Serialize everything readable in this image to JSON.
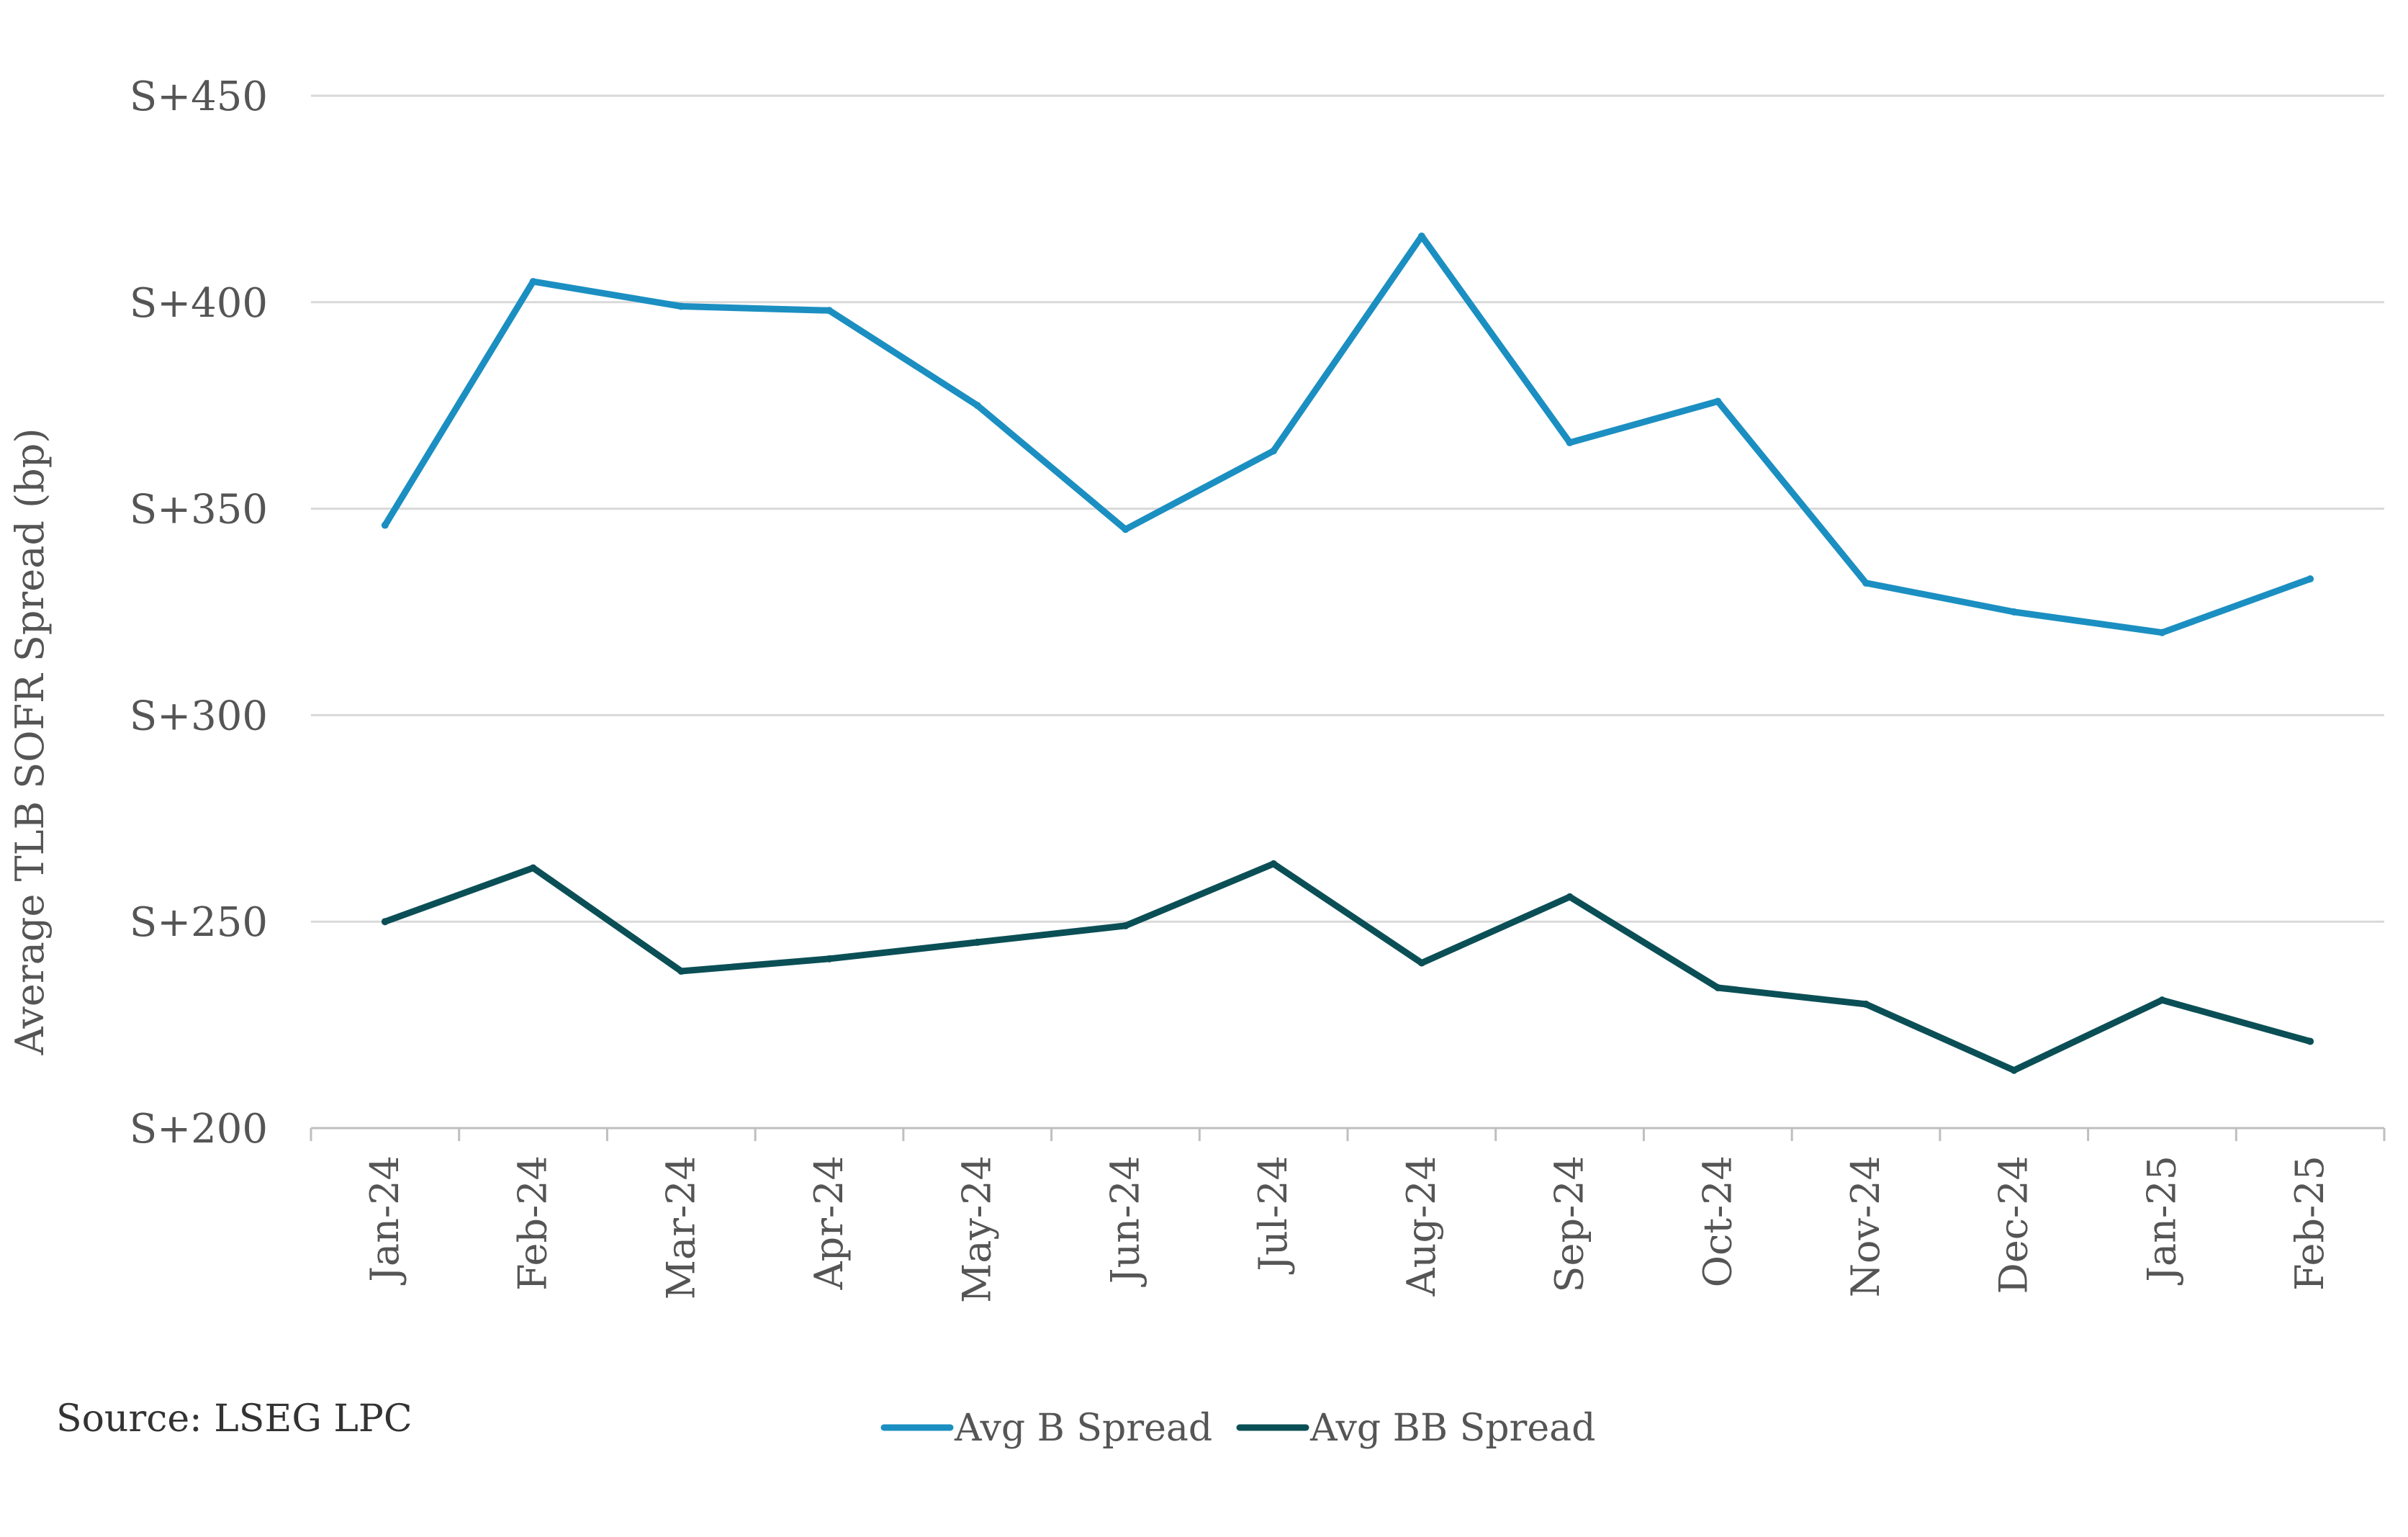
{
  "chart_data": {
    "type": "line",
    "categories": [
      "Jan-24",
      "Feb-24",
      "Mar-24",
      "Apr-24",
      "May-24",
      "Jun-24",
      "Jul-24",
      "Aug-24",
      "Sep-24",
      "Oct-24",
      "Nov-24",
      "Dec-24",
      "Jan-25",
      "Feb-25"
    ],
    "series": [
      {
        "name": "Avg B Spread",
        "color": "#1b8fc1",
        "values": [
          346,
          405,
          399,
          398,
          375,
          345,
          364,
          416,
          366,
          376,
          332,
          325,
          320,
          333
        ]
      },
      {
        "name": "Avg BB Spread",
        "color": "#0b4f56",
        "values": [
          250,
          263,
          238,
          241,
          245,
          249,
          264,
          240,
          256,
          234,
          230,
          214,
          231,
          221
        ]
      }
    ],
    "ylim": [
      200,
      450
    ],
    "yticks": [
      {
        "value": 450,
        "label": "S+450"
      },
      {
        "value": 400,
        "label": "S+400"
      },
      {
        "value": 350,
        "label": "S+350"
      },
      {
        "value": 300,
        "label": "S+300"
      },
      {
        "value": 250,
        "label": "S+250"
      },
      {
        "value": 200,
        "label": "S+200"
      }
    ],
    "ylabel": "Average TLB SOFR Spread (bp)",
    "xlabel": "",
    "title": "",
    "grid": true,
    "legend_position": "bottom"
  },
  "source": "Source: LSEG LPC"
}
